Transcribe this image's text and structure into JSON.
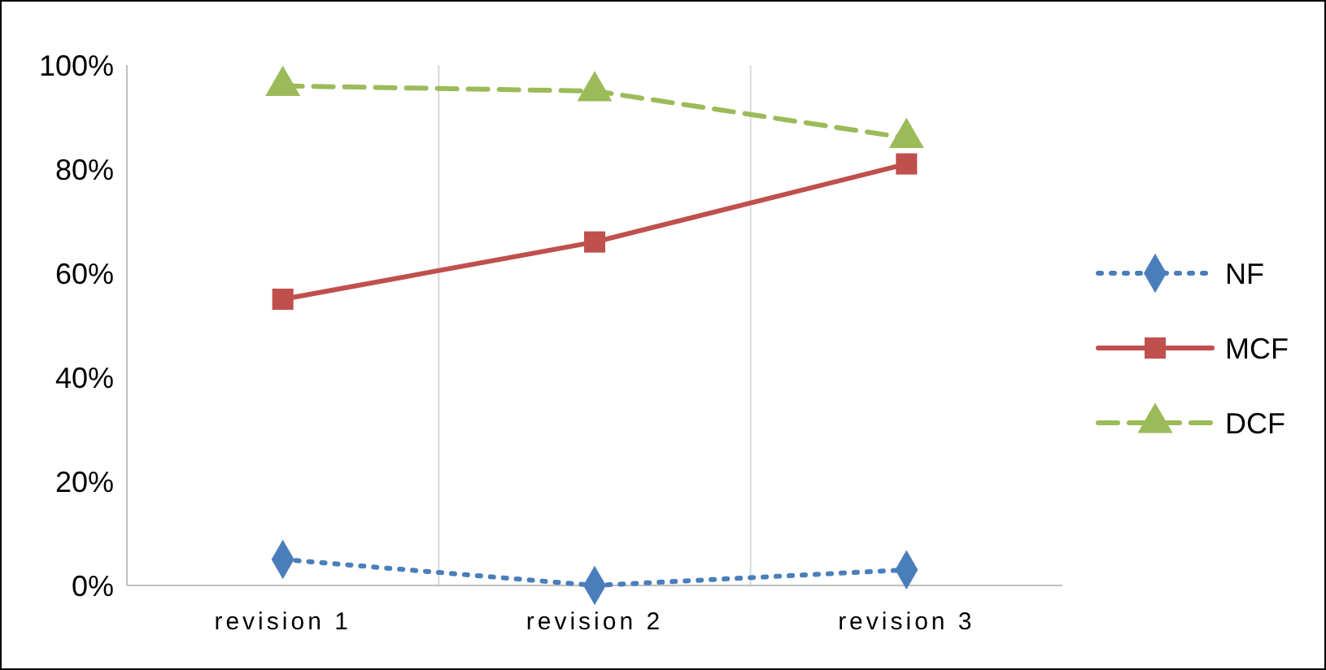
{
  "chart_data": {
    "type": "line",
    "categories": [
      "revision 1",
      "revision 2",
      "revision 3"
    ],
    "series": [
      {
        "name": "NF",
        "color": "#4a7ebb",
        "values": [
          5,
          0,
          3
        ],
        "marker": "diamond",
        "line_style": "dotted"
      },
      {
        "name": "MCF",
        "color": "#c0504d",
        "values": [
          55,
          66,
          81
        ],
        "marker": "square",
        "line_style": "solid"
      },
      {
        "name": "DCF",
        "color": "#9bbb59",
        "values": [
          96,
          95,
          86
        ],
        "marker": "triangle",
        "line_style": "dashed"
      }
    ],
    "ylim": [
      0,
      100
    ],
    "yticks": [
      {
        "value": 0,
        "label": "0%"
      },
      {
        "value": 20,
        "label": "20%"
      },
      {
        "value": 40,
        "label": "40%"
      },
      {
        "value": 60,
        "label": "60%"
      },
      {
        "value": 80,
        "label": "80%"
      },
      {
        "value": 100,
        "label": "100%"
      }
    ],
    "grid": "x",
    "legend": "right"
  }
}
